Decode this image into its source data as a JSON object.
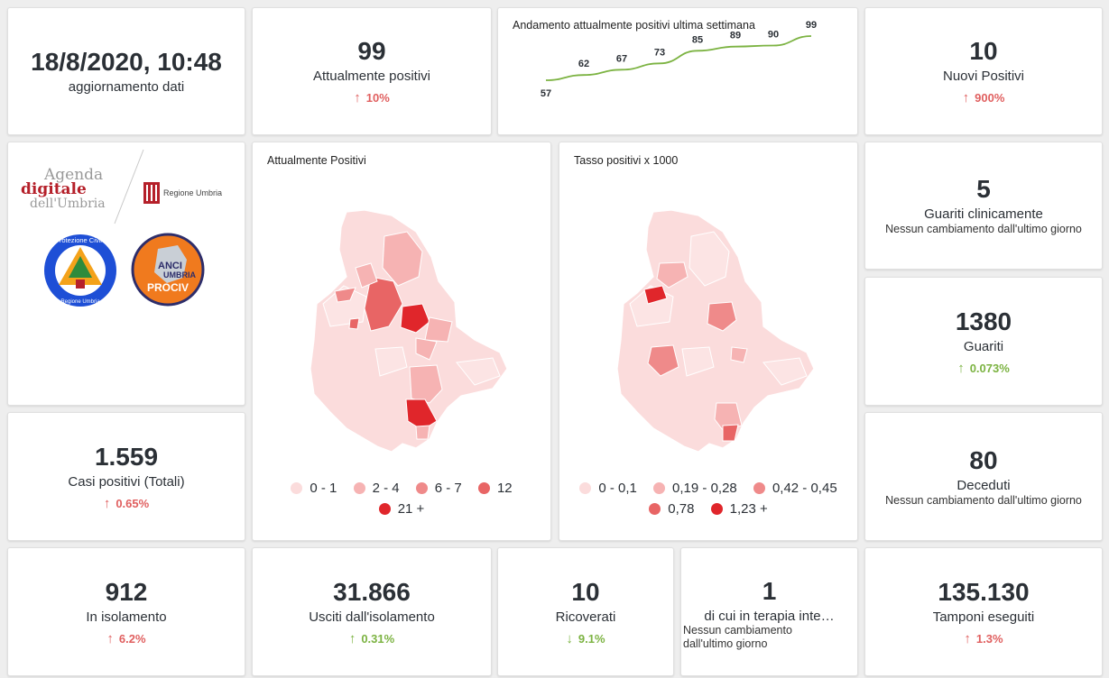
{
  "update": {
    "datetime": "18/8/2020, 10:48",
    "label": "aggiornamento dati"
  },
  "attualmente_positivi": {
    "value": "99",
    "label": "Attualmente positivi",
    "delta": "10%",
    "delta_direction": "up",
    "delta_color": "#e05f5f"
  },
  "trend": {
    "title": "Andamento attualmente positivi ultima settimana",
    "color": "#7cb342",
    "labels": [
      "57",
      "62",
      "67",
      "73",
      "85",
      "89",
      "90",
      "99"
    ]
  },
  "chart_data": {
    "type": "line",
    "title": "Andamento attualmente positivi ultima settimana",
    "x": [
      1,
      2,
      3,
      4,
      5,
      6,
      7,
      8
    ],
    "y": [
      57,
      62,
      67,
      73,
      85,
      89,
      90,
      99
    ],
    "grid": false,
    "legend": "none"
  },
  "nuovi_positivi": {
    "value": "10",
    "label": "Nuovi Positivi",
    "delta": "900%",
    "delta_direction": "up",
    "delta_color": "#e05f5f"
  },
  "logos": {
    "agenda": {
      "line1": "Agenda",
      "line2": "digitale",
      "line3": "dell'Umbria"
    },
    "regione": "Regione Umbria",
    "protezione_civile": {
      "top": "Protezione Civile",
      "bottom": "Regione Umbria"
    },
    "anci": {
      "line1": "ANCI",
      "line2": "UMBRIA",
      "line3": "PROCIV"
    }
  },
  "map_positivi": {
    "title": "Attualmente Positivi",
    "legend": [
      {
        "label": "0 - 1",
        "color": "#fbdcdc"
      },
      {
        "label": "2 - 4",
        "color": "#f6b3b3"
      },
      {
        "label": "6 - 7",
        "color": "#ef8a8a"
      },
      {
        "label": "12",
        "color": "#e86565"
      },
      {
        "label": "21 +",
        "color": "#e0262b"
      }
    ]
  },
  "map_tasso": {
    "title": "Tasso positivi x 1000",
    "legend": [
      {
        "label": "0 - 0,1",
        "color": "#fbdcdc"
      },
      {
        "label": "0,19 - 0,28",
        "color": "#f6b3b3"
      },
      {
        "label": "0,42 - 0,45",
        "color": "#ef8a8a"
      },
      {
        "label": "0,78",
        "color": "#e86565"
      },
      {
        "label": "1,23 +",
        "color": "#e0262b"
      }
    ]
  },
  "guariti_clinicamente": {
    "value": "5",
    "label": "Guariti clinicamente",
    "sub": "Nessun cambiamento dall'ultimo giorno"
  },
  "guariti": {
    "value": "1380",
    "label": "Guariti",
    "delta": "0.073%",
    "delta_direction": "up",
    "delta_color": "#7cb342"
  },
  "casi_totali": {
    "value": "1.559",
    "label": "Casi positivi (Totali)",
    "delta": "0.65%",
    "delta_direction": "up",
    "delta_color": "#e05f5f"
  },
  "deceduti": {
    "value": "80",
    "label": "Deceduti",
    "sub": "Nessun cambiamento dall'ultimo giorno"
  },
  "isolamento": {
    "value": "912",
    "label": "In isolamento",
    "delta": "6.2%",
    "delta_direction": "up",
    "delta_color": "#e05f5f"
  },
  "usciti": {
    "value": "31.866",
    "label": "Usciti dall'isolamento",
    "delta": "0.31%",
    "delta_direction": "up",
    "delta_color": "#7cb342"
  },
  "ricoverati": {
    "value": "10",
    "label": "Ricoverati",
    "delta": "9.1%",
    "delta_direction": "down",
    "delta_color": "#7cb342"
  },
  "terapia": {
    "value": "1",
    "label": "di cui in terapia inte…",
    "sub": "Nessun cambiamento dall'ultimo giorno"
  },
  "tamponi": {
    "value": "135.130",
    "label": "Tamponi eseguiti",
    "delta": "1.3%",
    "delta_direction": "up",
    "delta_color": "#e05f5f"
  },
  "arrows": {
    "up": "↑",
    "down": "↓"
  }
}
